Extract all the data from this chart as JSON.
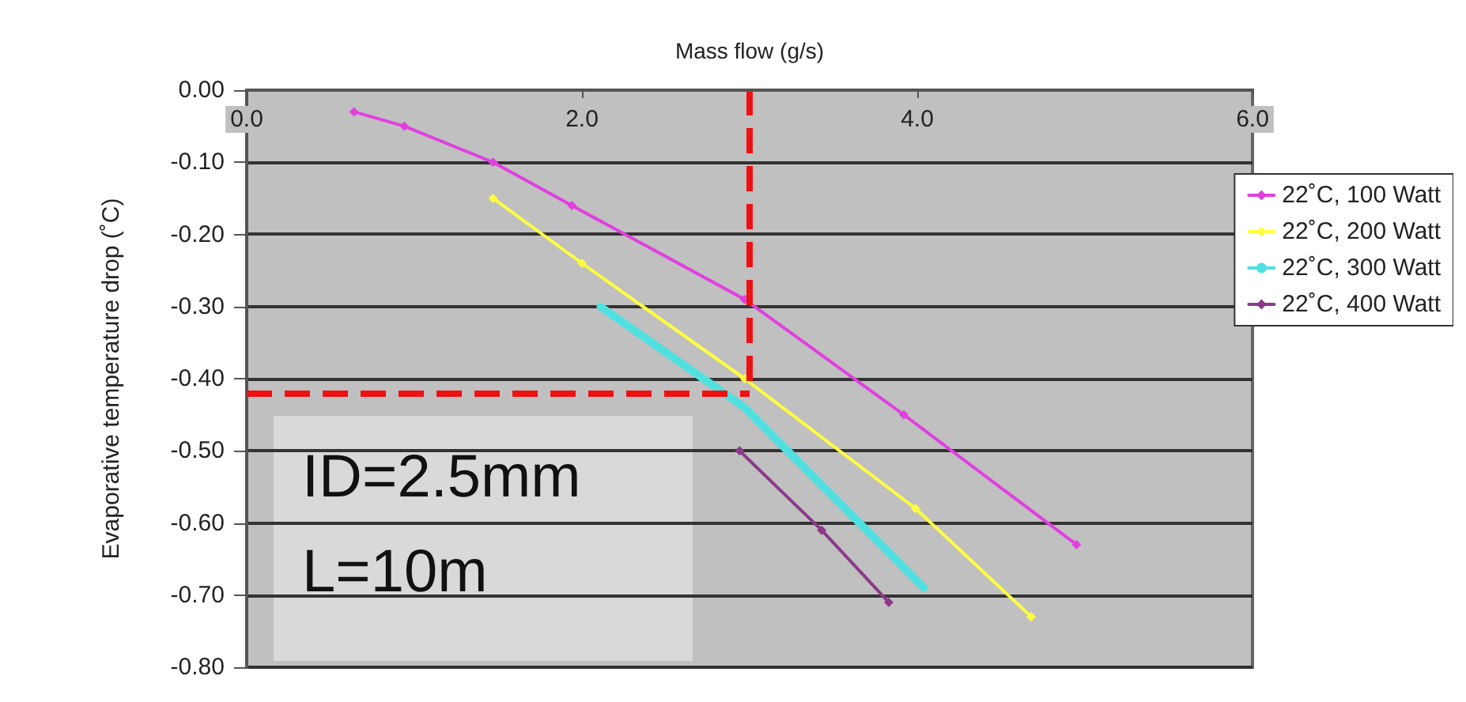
{
  "chart_data": {
    "type": "line",
    "xlabel": "Mass flow (g/s)",
    "ylabel": "Evaporative temperature drop (˚C)",
    "xlim": [
      0,
      6
    ],
    "xticks": [
      {
        "value": 0,
        "label": "0.0"
      },
      {
        "value": 2,
        "label": "2.0"
      },
      {
        "value": 4,
        "label": "4.0"
      },
      {
        "value": 6,
        "label": "6.0"
      }
    ],
    "ylim": [
      -0.8,
      0
    ],
    "yticks": [
      {
        "value": 0,
        "label": "0.00"
      },
      {
        "value": -0.1,
        "label": "-0.10"
      },
      {
        "value": -0.2,
        "label": "-0.20"
      },
      {
        "value": -0.3,
        "label": "-0.30"
      },
      {
        "value": -0.4,
        "label": "-0.40"
      },
      {
        "value": -0.5,
        "label": "-0.50"
      },
      {
        "value": -0.6,
        "label": "-0.60"
      },
      {
        "value": -0.7,
        "label": "-0.70"
      },
      {
        "value": -0.8,
        "label": "-0.80"
      }
    ],
    "grid": "y",
    "legend": "top right",
    "marker": "diamond",
    "series": [
      {
        "name": "22˚C, 100 Watt",
        "color": "#e040e0",
        "x": [
          0.64,
          0.94,
          1.47,
          1.94,
          2.97,
          3.92,
          4.95
        ],
        "values": [
          -0.03,
          -0.05,
          -0.1,
          -0.16,
          -0.29,
          -0.45,
          -0.63
        ]
      },
      {
        "name": "22˚C, 200 Watt",
        "color": "#ffff40",
        "x": [
          1.47,
          2.0,
          2.97,
          3.99,
          4.68
        ],
        "values": [
          -0.15,
          -0.24,
          -0.4,
          -0.58,
          -0.73
        ]
      },
      {
        "name": "22˚C, 300 Watt",
        "color": "#50e0e0",
        "marker": "none",
        "x": [
          2.11,
          2.97,
          4.04
        ],
        "values": [
          -0.3,
          -0.44,
          -0.69
        ]
      },
      {
        "name": "22˚C, 400 Watt",
        "color": "#8b3a8b",
        "x": [
          2.94,
          3.43,
          3.83
        ],
        "values": [
          -0.5,
          -0.61,
          -0.71
        ]
      }
    ],
    "ref_lines": [
      {
        "axis": "x",
        "value": 3.0,
        "color": "#ee1111",
        "line_style": "dashed"
      },
      {
        "axis": "y",
        "value": -0.42,
        "color": "#ee1111",
        "line_style": "dashed"
      }
    ],
    "annotations": [
      "ID=2.5mm",
      "L=10m"
    ]
  }
}
